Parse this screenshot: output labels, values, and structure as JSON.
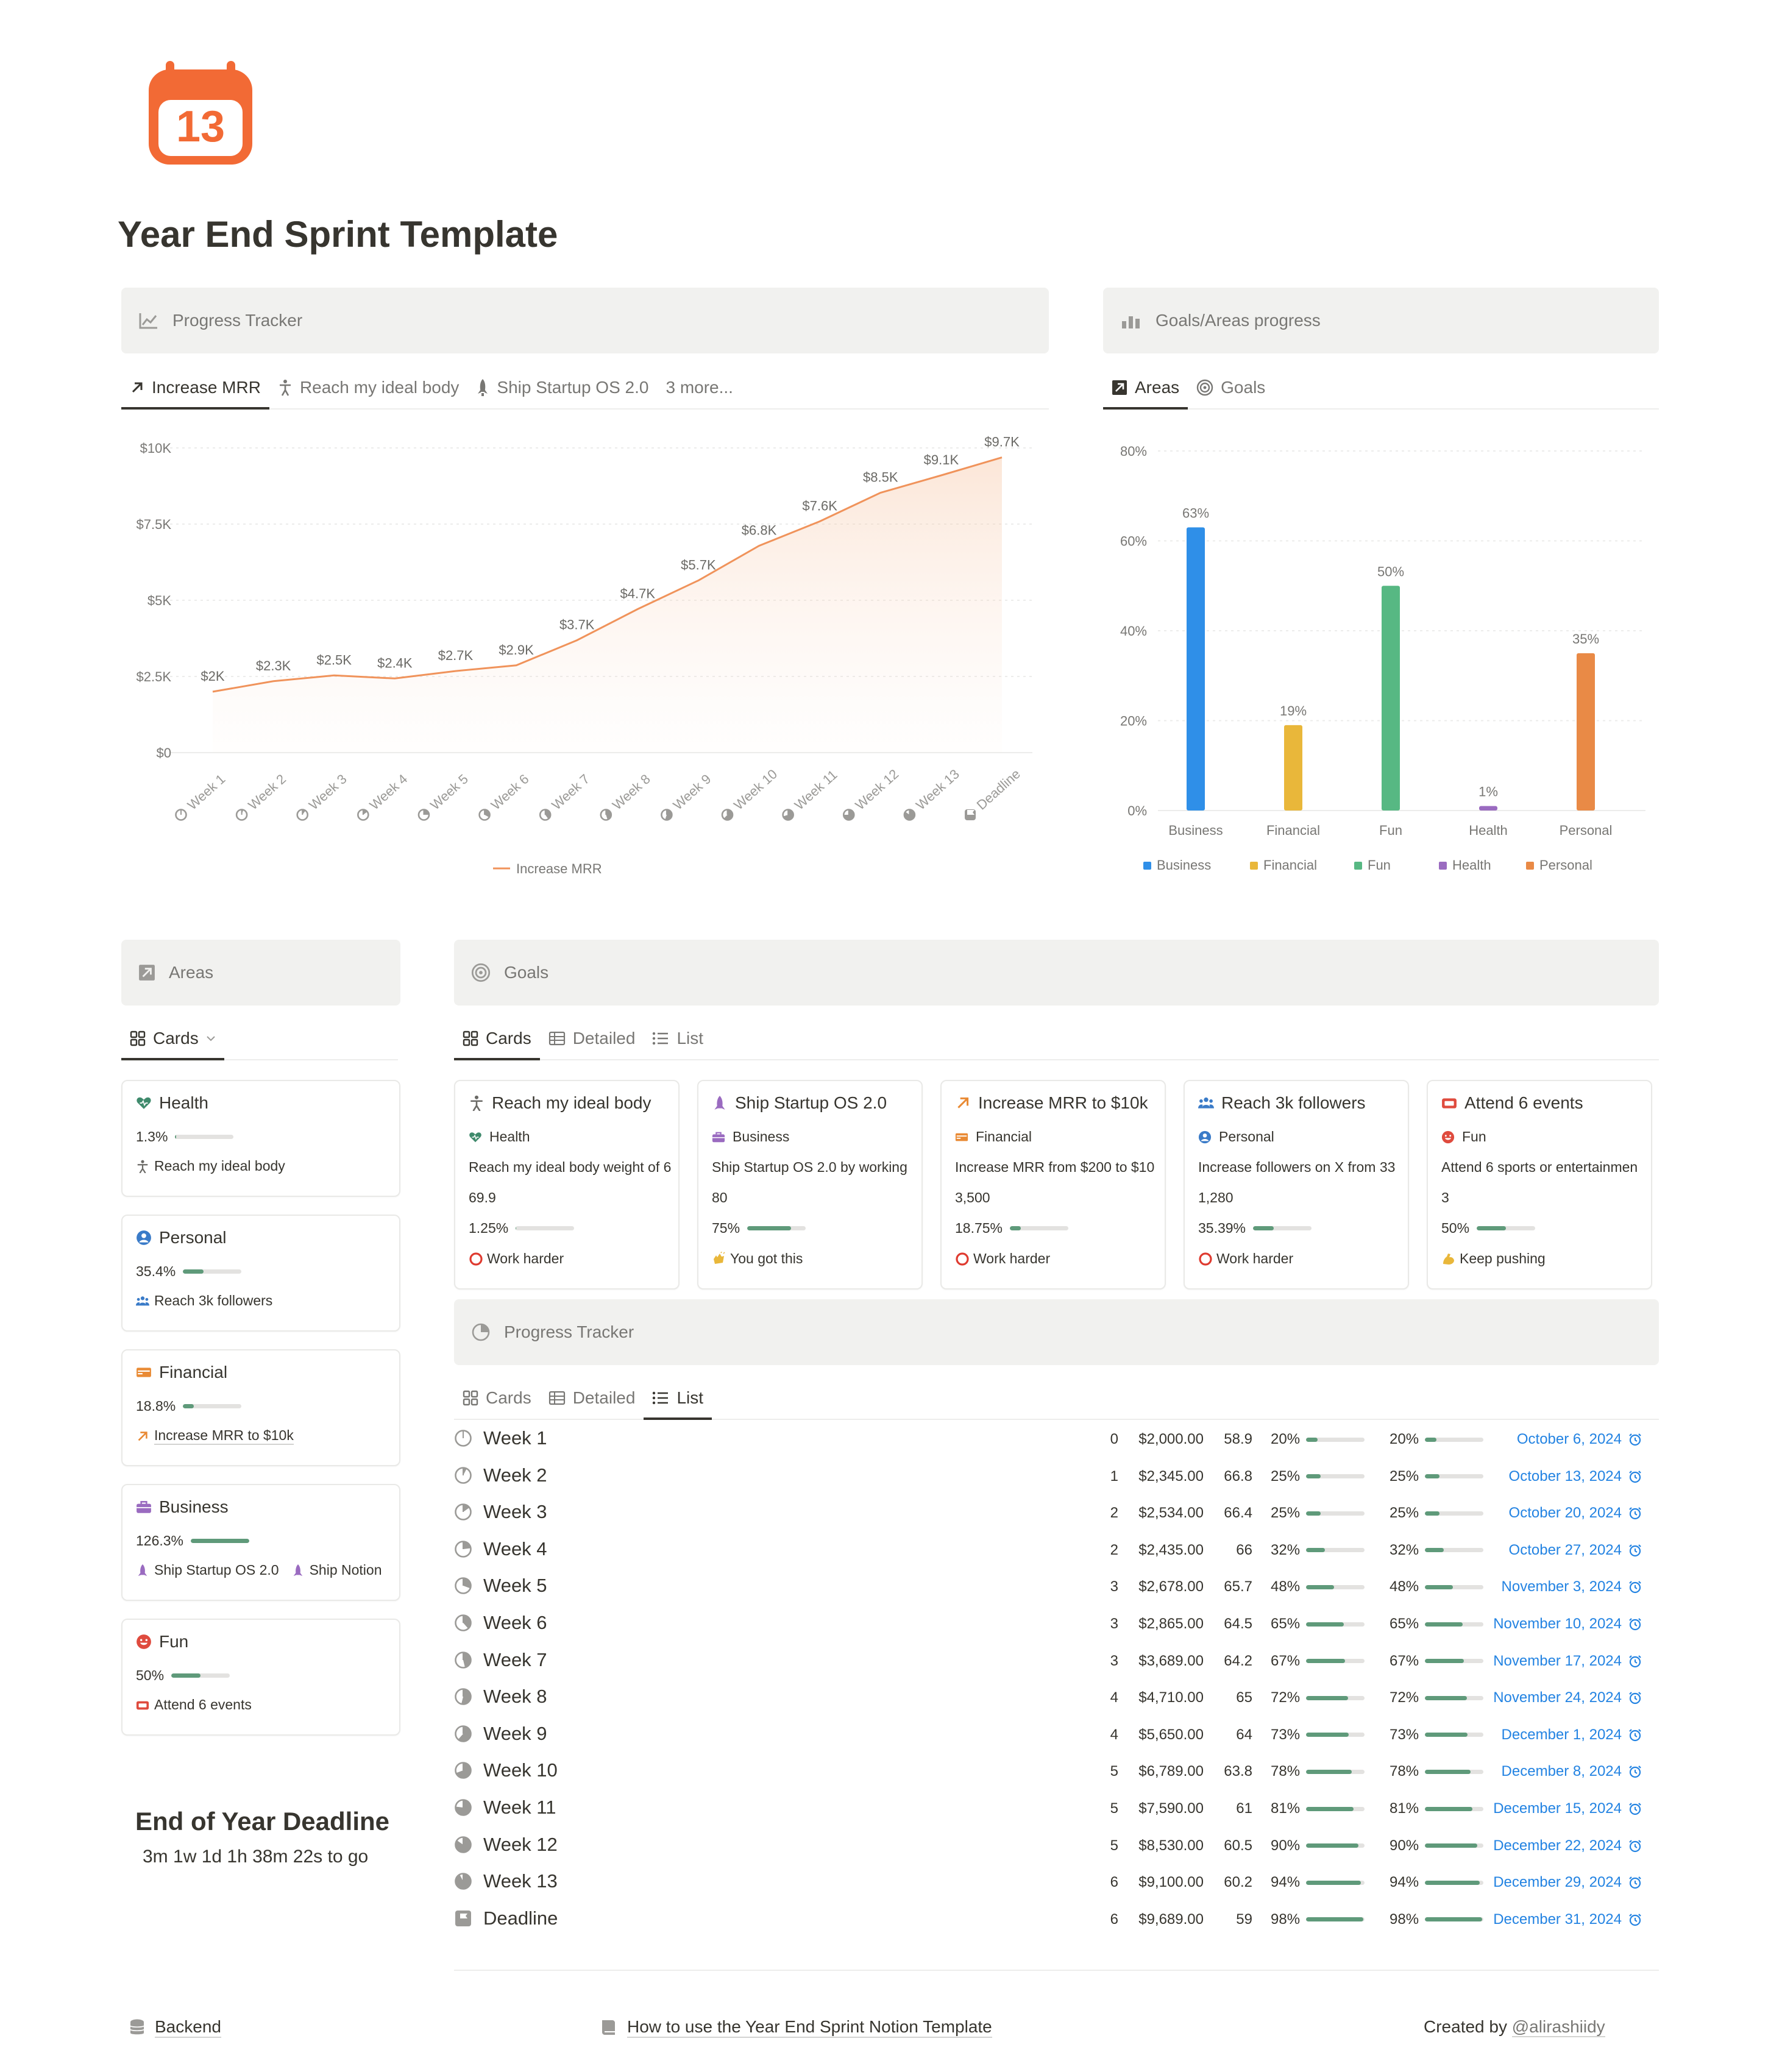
{
  "page": {
    "title": "Year End Sprint Template",
    "icon_day": "13"
  },
  "progress_tracker_header": "Progress Tracker",
  "goals_areas_header": "Goals/Areas progress",
  "chart_tabs": [
    {
      "label": "Increase MRR",
      "icon": "arrow-up-right-icon"
    },
    {
      "label": "Reach my ideal body",
      "icon": "person-icon"
    },
    {
      "label": "Ship Startup OS 2.0",
      "icon": "rocket-icon"
    },
    {
      "label": "3 more..."
    }
  ],
  "area_chart_tabs": [
    {
      "label": "Areas",
      "icon": "arrow-box-icon"
    },
    {
      "label": "Goals",
      "icon": "target-icon"
    }
  ],
  "chart_data": [
    {
      "type": "area",
      "series": [
        {
          "name": "Increase MRR",
          "color": "#f0935b",
          "values": [
            2000,
            2345,
            2534,
            2435,
            2678,
            2865,
            3689,
            4710,
            5650,
            6789,
            7590,
            8530,
            9100,
            9689
          ],
          "labels": [
            "$2K",
            "$2.3K",
            "$2.5K",
            "$2.4K",
            "$2.7K",
            "$2.9K",
            "$3.7K",
            "$4.7K",
            "$5.7K",
            "$6.8K",
            "$7.6K",
            "$8.5K",
            "$9.1K",
            "$9.7K"
          ]
        }
      ],
      "categories": [
        "Week 1",
        "Week 2",
        "Week 3",
        "Week 4",
        "Week 5",
        "Week 6",
        "Week 7",
        "Week 8",
        "Week 9",
        "Week 10",
        "Week 11",
        "Week 12",
        "Week 13",
        "Deadline"
      ],
      "y_ticks": [
        "$0",
        "$2.5K",
        "$5K",
        "$7.5K",
        "$10K"
      ],
      "ylim": [
        0,
        10000
      ],
      "legend": "Increase MRR",
      "legend_position": "bottom",
      "grid": true
    },
    {
      "type": "bar",
      "categories": [
        "Business",
        "Financial",
        "Fun",
        "Health",
        "Personal"
      ],
      "values": [
        63,
        19,
        50,
        1,
        35
      ],
      "value_labels": [
        "63%",
        "19%",
        "50%",
        "1%",
        "35%"
      ],
      "colors": [
        "#2f8fe8",
        "#e9b73a",
        "#57b883",
        "#9a6bc0",
        "#e98a46"
      ],
      "y_ticks": [
        "0%",
        "20%",
        "40%",
        "60%",
        "80%"
      ],
      "ylim": [
        0,
        80
      ],
      "legend_position": "bottom",
      "grid": true
    }
  ],
  "areas_section": {
    "header": "Areas",
    "view": "Cards",
    "cards": [
      {
        "title": "Health",
        "icon": "heart-icon",
        "percent": "1.3%",
        "fill": 0.013,
        "goals": [
          {
            "label": "Reach my ideal body",
            "icon": "person-icon"
          }
        ]
      },
      {
        "title": "Personal",
        "icon": "user-circle-icon",
        "percent": "35.4%",
        "fill": 0.354,
        "goals": [
          {
            "label": "Reach 3k followers",
            "icon": "people-icon"
          }
        ]
      },
      {
        "title": "Financial",
        "icon": "money-icon",
        "percent": "18.8%",
        "fill": 0.188,
        "goals": [
          {
            "label": "Increase MRR to $10k",
            "icon": "arrow-up-right-icon"
          }
        ]
      },
      {
        "title": "Business",
        "icon": "briefcase-icon",
        "percent": "126.3%",
        "fill": 1.0,
        "goals": [
          {
            "label": "Ship Startup OS 2.0",
            "icon": "rocket-icon"
          },
          {
            "label": "Ship Notion",
            "icon": "rocket-icon"
          }
        ]
      },
      {
        "title": "Fun",
        "icon": "smile-icon",
        "percent": "50%",
        "fill": 0.5,
        "goals": [
          {
            "label": "Attend 6 events",
            "icon": "ticket-icon"
          }
        ]
      }
    ]
  },
  "goals_section": {
    "header": "Goals",
    "tabs": [
      "Cards",
      "Detailed",
      "List"
    ],
    "cards": [
      {
        "title": "Reach my ideal body",
        "icon": "person-icon",
        "area": "Health",
        "area_icon": "heart-icon",
        "desc": "Reach my ideal body weight of 6",
        "value": "69.9",
        "percent": "1.25%",
        "fill": 0.0125,
        "status": "Work harder",
        "status_icon": "red-circle-icon"
      },
      {
        "title": "Ship Startup OS 2.0",
        "icon": "rocket-icon",
        "area": "Business",
        "area_icon": "briefcase-icon",
        "desc": "Ship Startup OS 2.0 by working",
        "value": "80",
        "percent": "75%",
        "fill": 0.75,
        "status": "You got this",
        "status_icon": "clap-icon"
      },
      {
        "title": "Increase MRR to $10k",
        "icon": "arrow-up-right-icon",
        "area": "Financial",
        "area_icon": "money-icon",
        "desc": "Increase MRR from $200 to $10",
        "value": "3,500",
        "percent": "18.75%",
        "fill": 0.1875,
        "status": "Work harder",
        "status_icon": "red-circle-icon"
      },
      {
        "title": "Reach 3k followers",
        "icon": "people-icon",
        "area": "Personal",
        "area_icon": "user-circle-icon",
        "desc": "Increase followers on X from 33",
        "value": "1,280",
        "percent": "35.39%",
        "fill": 0.3539,
        "status": "Work harder",
        "status_icon": "red-circle-icon"
      },
      {
        "title": "Attend 6 events",
        "icon": "ticket-icon",
        "area": "Fun",
        "area_icon": "smile-icon",
        "desc": "Attend 6 sports or entertainmen",
        "value": "3",
        "percent": "50%",
        "fill": 0.5,
        "status": "Keep pushing",
        "status_icon": "muscle-icon"
      }
    ]
  },
  "tracker_section": {
    "header": "Progress Tracker",
    "tabs": [
      "Cards",
      "Detailed",
      "List"
    ],
    "rows": [
      {
        "name": "Week 1",
        "n": "0",
        "mrr": "$2,000.00",
        "w": "58.9",
        "p1": "20%",
        "p2": "20%",
        "f1": 0.2,
        "f2": 0.2,
        "date": "October 6, 2024"
      },
      {
        "name": "Week 2",
        "n": "1",
        "mrr": "$2,345.00",
        "w": "66.8",
        "p1": "25%",
        "p2": "25%",
        "f1": 0.25,
        "f2": 0.25,
        "date": "October 13, 2024"
      },
      {
        "name": "Week 3",
        "n": "2",
        "mrr": "$2,534.00",
        "w": "66.4",
        "p1": "25%",
        "p2": "25%",
        "f1": 0.25,
        "f2": 0.25,
        "date": "October 20, 2024"
      },
      {
        "name": "Week 4",
        "n": "2",
        "mrr": "$2,435.00",
        "w": "66",
        "p1": "32%",
        "p2": "32%",
        "f1": 0.32,
        "f2": 0.32,
        "date": "October 27, 2024"
      },
      {
        "name": "Week 5",
        "n": "3",
        "mrr": "$2,678.00",
        "w": "65.7",
        "p1": "48%",
        "p2": "48%",
        "f1": 0.48,
        "f2": 0.48,
        "date": "November 3, 2024"
      },
      {
        "name": "Week 6",
        "n": "3",
        "mrr": "$2,865.00",
        "w": "64.5",
        "p1": "65%",
        "p2": "65%",
        "f1": 0.65,
        "f2": 0.65,
        "date": "November 10, 2024"
      },
      {
        "name": "Week 7",
        "n": "3",
        "mrr": "$3,689.00",
        "w": "64.2",
        "p1": "67%",
        "p2": "67%",
        "f1": 0.67,
        "f2": 0.67,
        "date": "November 17, 2024"
      },
      {
        "name": "Week 8",
        "n": "4",
        "mrr": "$4,710.00",
        "w": "65",
        "p1": "72%",
        "p2": "72%",
        "f1": 0.72,
        "f2": 0.72,
        "date": "November 24, 2024"
      },
      {
        "name": "Week 9",
        "n": "4",
        "mrr": "$5,650.00",
        "w": "64",
        "p1": "73%",
        "p2": "73%",
        "f1": 0.73,
        "f2": 0.73,
        "date": "December 1, 2024"
      },
      {
        "name": "Week 10",
        "n": "5",
        "mrr": "$6,789.00",
        "w": "63.8",
        "p1": "78%",
        "p2": "78%",
        "f1": 0.78,
        "f2": 0.78,
        "date": "December 8, 2024"
      },
      {
        "name": "Week 11",
        "n": "5",
        "mrr": "$7,590.00",
        "w": "61",
        "p1": "81%",
        "p2": "81%",
        "f1": 0.81,
        "f2": 0.81,
        "date": "December 15, 2024"
      },
      {
        "name": "Week 12",
        "n": "5",
        "mrr": "$8,530.00",
        "w": "60.5",
        "p1": "90%",
        "p2": "90%",
        "f1": 0.9,
        "f2": 0.9,
        "date": "December 22, 2024"
      },
      {
        "name": "Week 13",
        "n": "6",
        "mrr": "$9,100.00",
        "w": "60.2",
        "p1": "94%",
        "p2": "94%",
        "f1": 0.94,
        "f2": 0.94,
        "date": "December 29, 2024"
      },
      {
        "name": "Deadline",
        "n": "6",
        "mrr": "$9,689.00",
        "w": "59",
        "p1": "98%",
        "p2": "98%",
        "f1": 0.98,
        "f2": 0.98,
        "date": "December 31, 2024"
      }
    ]
  },
  "deadline": {
    "title": "End of Year Deadline",
    "countdown": "3m 1w 1d 1h 38m 22s to go"
  },
  "footer": {
    "backend": "Backend",
    "howto": "How to use the Year End Sprint Notion Template",
    "created_prefix": "Created by",
    "created_handle": "@alirashiidy"
  }
}
